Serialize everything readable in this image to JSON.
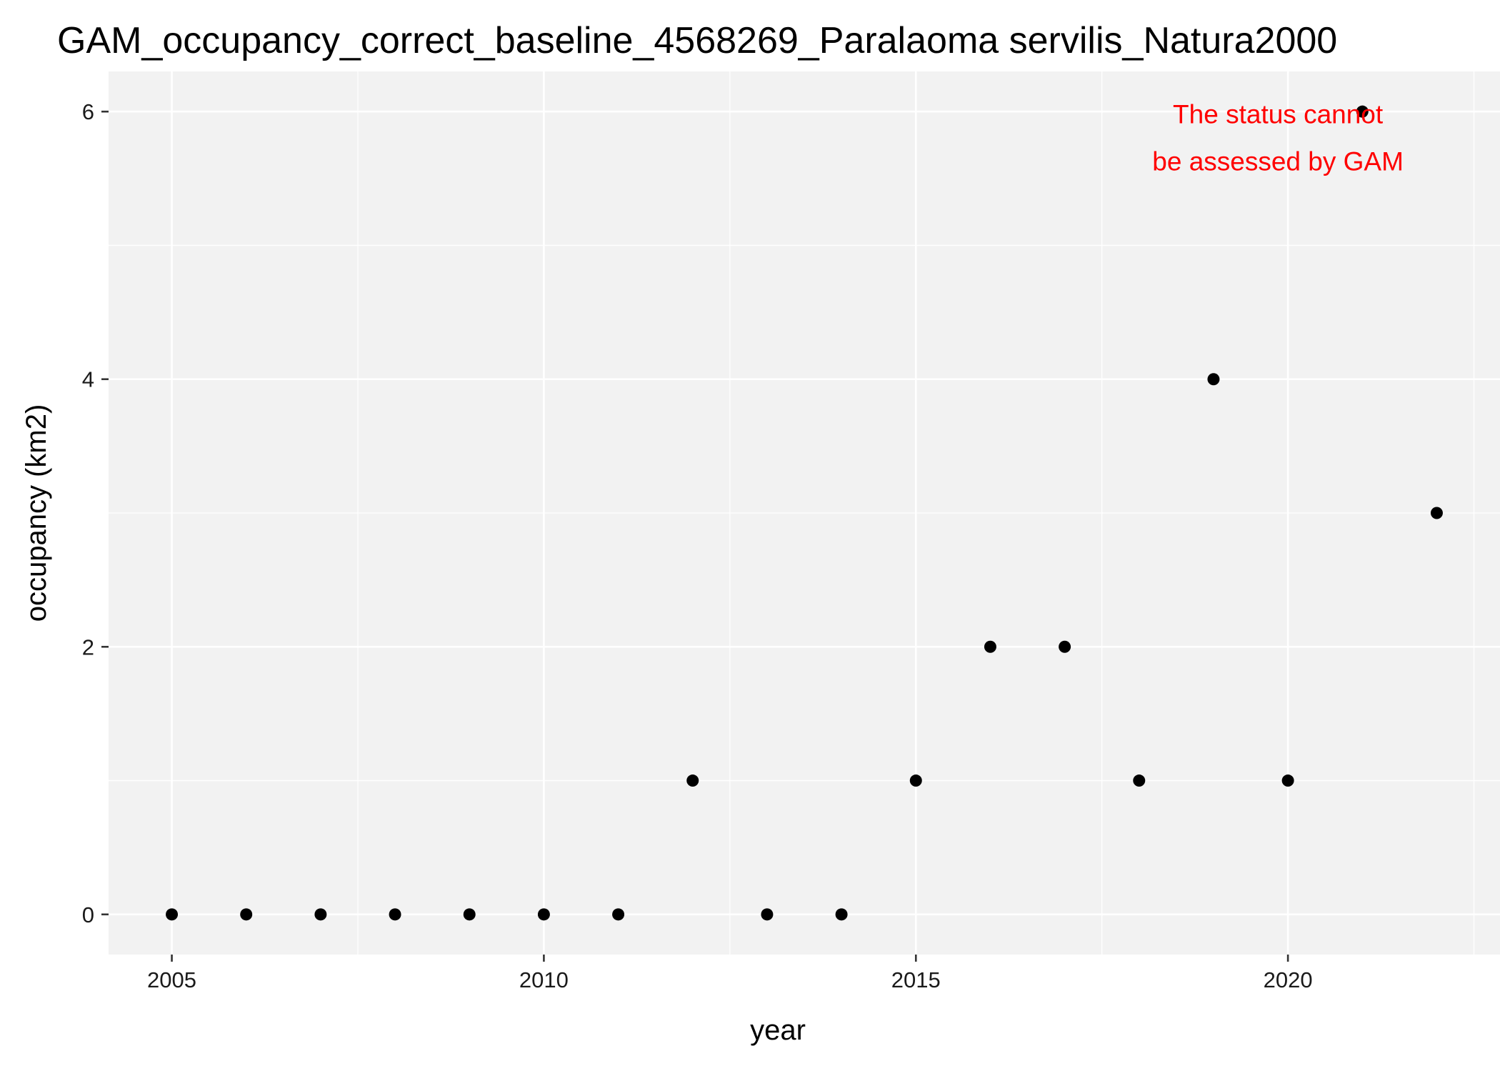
{
  "chart_data": {
    "type": "scatter",
    "title": "GAM_occupancy_correct_baseline_4568269_Paralaoma servilis_Natura2000",
    "xlabel": "year",
    "ylabel": "occupancy (km2)",
    "xlim": [
      2004.15,
      2022.85
    ],
    "ylim": [
      -0.3,
      6.3
    ],
    "x_ticks": [
      2005,
      2010,
      2015,
      2020
    ],
    "x_minor_ticks": [
      2007.5,
      2012.5,
      2017.5,
      2022.5
    ],
    "y_ticks": [
      0,
      2,
      4,
      6
    ],
    "y_minor_ticks": [
      1,
      3,
      5
    ],
    "grid": true,
    "legend": "none",
    "colors": {
      "panel_background": "#f2f2f2",
      "grid": "#ffffff",
      "point": "#000000",
      "annotation": "#ff0000"
    },
    "points": [
      {
        "x": 2005,
        "y": 0
      },
      {
        "x": 2006,
        "y": 0
      },
      {
        "x": 2007,
        "y": 0
      },
      {
        "x": 2008,
        "y": 0
      },
      {
        "x": 2009,
        "y": 0
      },
      {
        "x": 2010,
        "y": 0
      },
      {
        "x": 2011,
        "y": 0
      },
      {
        "x": 2012,
        "y": 1
      },
      {
        "x": 2013,
        "y": 0
      },
      {
        "x": 2014,
        "y": 0
      },
      {
        "x": 2015,
        "y": 1
      },
      {
        "x": 2016,
        "y": 2
      },
      {
        "x": 2017,
        "y": 2
      },
      {
        "x": 2018,
        "y": 1
      },
      {
        "x": 2019,
        "y": 4
      },
      {
        "x": 2020,
        "y": 1
      },
      {
        "x": 2021,
        "y": 6
      },
      {
        "x": 2022,
        "y": 3
      }
    ],
    "annotation": {
      "lines": [
        "The status cannot",
        "be assessed by GAM"
      ],
      "x": 2020,
      "y": 5.8
    }
  }
}
